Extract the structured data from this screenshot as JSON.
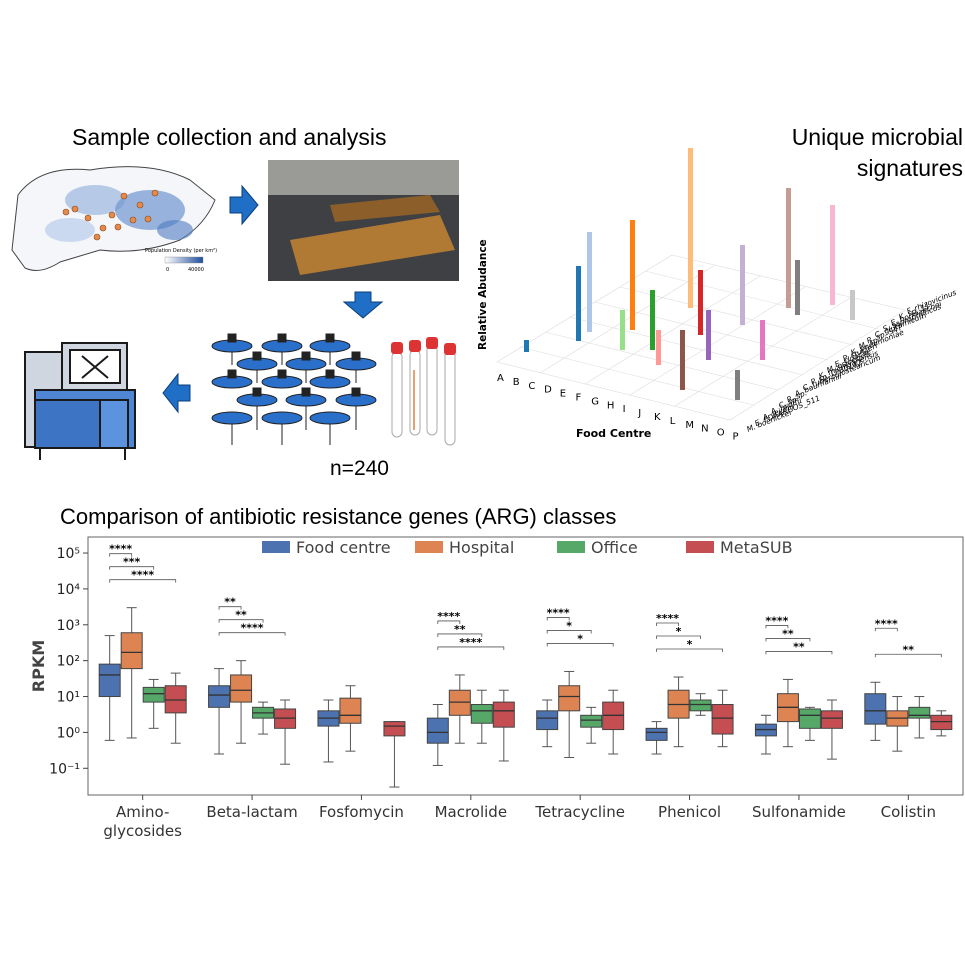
{
  "header": {
    "left_title": "Sample collection and analysis",
    "right_title": "Unique microbial signatures"
  },
  "map_legend": {
    "title": "Population Density (per km²)",
    "min": 0,
    "max": 40000
  },
  "sample_count": "n=240",
  "signature_chart": {
    "y_label": "Relative Abudance",
    "x_label": "Food Centre",
    "food_centres": [
      "A",
      "B",
      "C",
      "D",
      "E",
      "F",
      "G",
      "H",
      "I",
      "J",
      "K",
      "L",
      "M",
      "N",
      "O",
      "P"
    ],
    "species": [
      "M. boenickei",
      "E. FDAARGOS_511",
      "A. jejunii",
      "A. lwoffii",
      "C. sp.",
      "R. sp.",
      "A. baumannii",
      "C. tuberculostearicum",
      "P. sp. LPB0142",
      "K. michiganensis",
      "M. osloensis",
      "E. cloacae",
      "P. stutzeri",
      "K. pneumoniae",
      "M. sp.",
      "R. sp. S4T",
      "C. glutamicum",
      "S. saprophyticus",
      "E. hormaechei",
      "K. sp. 11",
      "F. rhizovicinus"
    ]
  },
  "chart_data": {
    "type": "box",
    "title": "Comparison of antibiotic resistance genes (ARG) classes",
    "y_label": "RPKM",
    "categories": [
      "Amino-\nglycosides",
      "Beta-lactam",
      "Fosfomycin",
      "Macrolide",
      "Tetracycline",
      "Phenicol",
      "Sulfonamide",
      "Colistin"
    ],
    "log_scale": true,
    "legend": "top",
    "ylim": [
      0.018,
      280000
    ],
    "yticks": [
      {
        "value": 0.1,
        "label": "10⁻¹"
      },
      {
        "value": 1,
        "label": "10⁰"
      },
      {
        "value": 10,
        "label": "10¹"
      },
      {
        "value": 100,
        "label": "10²"
      },
      {
        "value": 1000,
        "label": "10³"
      },
      {
        "value": 10000,
        "label": "10⁴"
      },
      {
        "value": 100000,
        "label": "10⁵"
      }
    ],
    "series": [
      {
        "name": "Food centre",
        "color": "#4c72b0",
        "low": [
          0.6,
          0.25,
          0.15,
          0.12,
          0.4,
          0.25,
          0.25,
          0.6
        ],
        "q1": [
          10,
          5,
          1.5,
          0.5,
          1.2,
          0.6,
          0.8,
          1.7
        ],
        "median": [
          40,
          11,
          2.5,
          1,
          2.5,
          1,
          1.2,
          4
        ],
        "q3": [
          80,
          20,
          4,
          2.5,
          4,
          1.3,
          1.7,
          12
        ],
        "high": [
          500,
          60,
          8,
          6,
          8,
          2,
          3,
          25
        ]
      },
      {
        "name": "Hospital",
        "color": "#dd8452",
        "low": [
          0.7,
          0.5,
          0.3,
          0.5,
          0.2,
          0.4,
          0.4,
          0.3
        ],
        "q1": [
          60,
          7,
          1.8,
          3,
          4,
          2.5,
          2,
          1.5
        ],
        "median": [
          170,
          15,
          3,
          7,
          10,
          6,
          5,
          2.5
        ],
        "q3": [
          600,
          40,
          9,
          15,
          20,
          15,
          12,
          4
        ],
        "high": [
          3000,
          100,
          20,
          40,
          50,
          35,
          30,
          10
        ]
      },
      {
        "name": "Office",
        "color": "#55a868",
        "low": [
          1.3,
          0.9,
          null,
          0.5,
          0.5,
          3,
          0.6,
          0.7
        ],
        "q1": [
          7,
          2.5,
          null,
          1.8,
          1.4,
          4,
          1.3,
          2.5
        ],
        "median": [
          12,
          3.5,
          null,
          4,
          2.2,
          6,
          3,
          3
        ],
        "q3": [
          18,
          5,
          null,
          6,
          3,
          8,
          4.5,
          5
        ],
        "high": [
          30,
          7,
          null,
          15,
          5,
          12,
          5,
          10
        ]
      },
      {
        "name": "MetaSUB",
        "color": "#c44e52",
        "low": [
          0.5,
          0.13,
          0.03,
          0.16,
          0.25,
          0.4,
          0.18,
          0.8
        ],
        "q1": [
          3.5,
          1.3,
          0.8,
          1.4,
          1.2,
          0.9,
          1.3,
          1.2
        ],
        "median": [
          8,
          2.5,
          1.5,
          4,
          3,
          2.5,
          2.5,
          2
        ],
        "q3": [
          20,
          4.5,
          2,
          7,
          7,
          6,
          4,
          3
        ],
        "high": [
          45,
          8,
          2,
          15,
          15,
          15,
          8,
          4
        ]
      }
    ],
    "significance": [
      [
        "****",
        "***",
        "****"
      ],
      [
        "**",
        "**",
        "****"
      ],
      [],
      [
        "****",
        "**",
        "****"
      ],
      [
        "****",
        "*",
        "*"
      ],
      [
        "****",
        "*",
        "*"
      ],
      [
        "****",
        "**",
        "**"
      ],
      [
        "****",
        null,
        "**"
      ]
    ]
  }
}
